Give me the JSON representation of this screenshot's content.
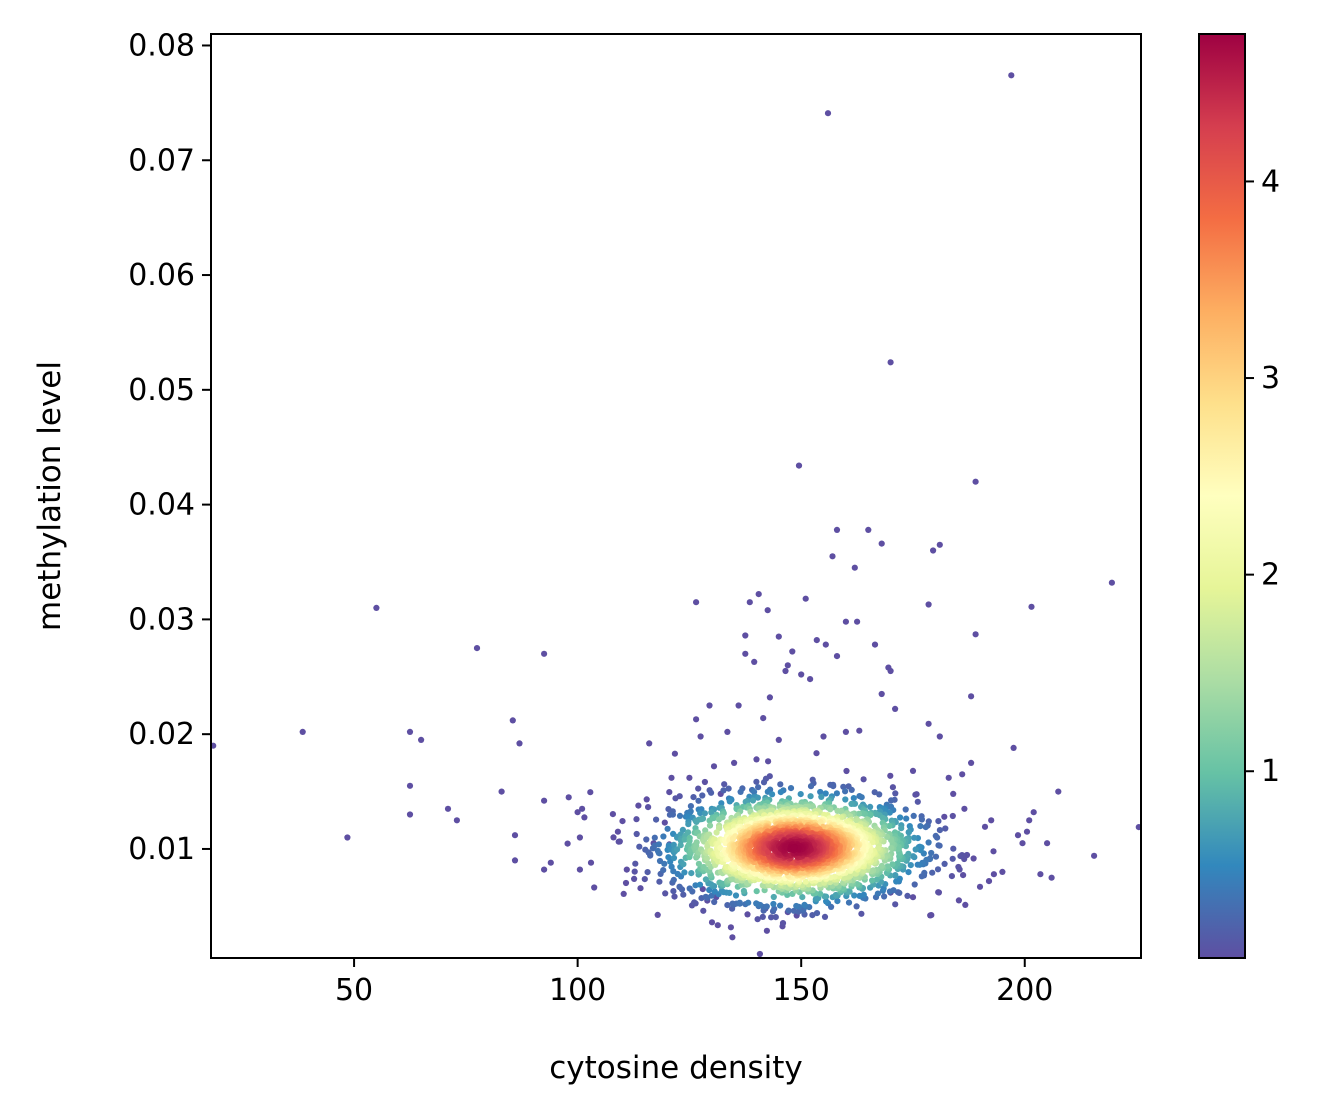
{
  "chart_data": {
    "type": "scatter",
    "title": "",
    "xlabel": "cytosine density",
    "ylabel": "methylation level",
    "xlim": [
      18,
      226
    ],
    "ylim": [
      0.0005,
      0.081
    ],
    "xticks": [
      50,
      100,
      150,
      200
    ],
    "xtick_labels": [
      "50",
      "100",
      "150",
      "200"
    ],
    "yticks": [
      0.01,
      0.02,
      0.03,
      0.04,
      0.05,
      0.06,
      0.07,
      0.08
    ],
    "ytick_labels": [
      "0.01",
      "0.02",
      "0.03",
      "0.04",
      "0.05",
      "0.06",
      "0.07",
      "0.08"
    ],
    "grid": false,
    "legend": "none",
    "colormap": "Spectral_r",
    "colorbar": {
      "range": [
        0.05,
        4.75
      ],
      "ticks": [
        1,
        2,
        3,
        4
      ],
      "tick_labels": [
        "1",
        "2",
        "3",
        "4"
      ],
      "colors": [
        "#5e4fa2",
        "#3288bd",
        "#66c2a5",
        "#abdda4",
        "#e6f598",
        "#ffffbf",
        "#fee08b",
        "#fdae61",
        "#f46d43",
        "#d53e4f",
        "#9e0142"
      ]
    },
    "outlier_points": [
      [
        18.5,
        0.019
      ],
      [
        38.5,
        0.0202
      ],
      [
        48.5,
        0.011
      ],
      [
        55,
        0.031
      ],
      [
        62.5,
        0.0202
      ],
      [
        62.5,
        0.0155
      ],
      [
        62.5,
        0.013
      ],
      [
        65,
        0.0195
      ],
      [
        71,
        0.0135
      ],
      [
        73,
        0.0125
      ],
      [
        77.5,
        0.0275
      ],
      [
        83,
        0.015
      ],
      [
        85.5,
        0.0212
      ],
      [
        86,
        0.0112
      ],
      [
        86,
        0.009
      ],
      [
        87,
        0.0192
      ],
      [
        92.5,
        0.0142
      ],
      [
        92.5,
        0.0082
      ],
      [
        92.5,
        0.027
      ],
      [
        94,
        0.0088
      ],
      [
        98,
        0.0145
      ],
      [
        100,
        0.0132
      ],
      [
        100.5,
        0.011
      ],
      [
        100.5,
        0.0082
      ],
      [
        101,
        0.0135
      ],
      [
        103,
        0.0088
      ],
      [
        109,
        0.0115
      ],
      [
        111,
        0.0082
      ],
      [
        116,
        0.0192
      ],
      [
        117,
        0.0105
      ],
      [
        119.5,
        0.0123
      ],
      [
        120.5,
        0.0104
      ],
      [
        121,
        0.0162
      ],
      [
        125,
        0.0162
      ],
      [
        126.5,
        0.0315
      ],
      [
        126.5,
        0.0213
      ],
      [
        127.5,
        0.0198
      ],
      [
        129.5,
        0.0225
      ],
      [
        130.5,
        0.0172
      ],
      [
        133.5,
        0.0202
      ],
      [
        136,
        0.0225
      ],
      [
        137.5,
        0.0286
      ],
      [
        137.5,
        0.027
      ],
      [
        138,
        0.0043
      ],
      [
        138.5,
        0.0315
      ],
      [
        139.5,
        0.0263
      ],
      [
        140.5,
        0.0322
      ],
      [
        141.5,
        0.0214
      ],
      [
        142,
        0.0048
      ],
      [
        142.5,
        0.0308
      ],
      [
        143,
        0.0232
      ],
      [
        145,
        0.0285
      ],
      [
        146.5,
        0.0255
      ],
      [
        147,
        0.026
      ],
      [
        147,
        0.0045
      ],
      [
        148,
        0.0272
      ],
      [
        149,
        0.0042
      ],
      [
        149.5,
        0.0434
      ],
      [
        150,
        0.0252
      ],
      [
        151,
        0.0318
      ],
      [
        152,
        0.0248
      ],
      [
        153.5,
        0.0282
      ],
      [
        155.5,
        0.0278
      ],
      [
        156,
        0.0741
      ],
      [
        157,
        0.0355
      ],
      [
        158,
        0.0378
      ],
      [
        158,
        0.0268
      ],
      [
        160,
        0.0298
      ],
      [
        162,
        0.0345
      ],
      [
        162.5,
        0.0298
      ],
      [
        165,
        0.0378
      ],
      [
        166.5,
        0.0278
      ],
      [
        168,
        0.0366
      ],
      [
        168,
        0.0235
      ],
      [
        169.5,
        0.0258
      ],
      [
        170,
        0.0524
      ],
      [
        170,
        0.0255
      ],
      [
        171,
        0.0222
      ],
      [
        175,
        0.0168
      ],
      [
        178.5,
        0.0313
      ],
      [
        178.5,
        0.0209
      ],
      [
        179.5,
        0.036
      ],
      [
        181,
        0.0365
      ],
      [
        181,
        0.0198
      ],
      [
        183,
        0.0162
      ],
      [
        186,
        0.0165
      ],
      [
        186.5,
        0.0135
      ],
      [
        188,
        0.0233
      ],
      [
        188,
        0.0175
      ],
      [
        189,
        0.0287
      ],
      [
        189,
        0.042
      ],
      [
        192.5,
        0.0125
      ],
      [
        193,
        0.0098
      ],
      [
        195,
        0.008
      ],
      [
        197,
        0.0774
      ],
      [
        197.5,
        0.0188
      ],
      [
        198.5,
        0.0112
      ],
      [
        199.5,
        0.0105
      ],
      [
        200.5,
        0.0115
      ],
      [
        201,
        0.0125
      ],
      [
        201.5,
        0.0311
      ],
      [
        202,
        0.0132
      ],
      [
        203.5,
        0.0078
      ],
      [
        205,
        0.0105
      ],
      [
        206,
        0.0075
      ],
      [
        207.5,
        0.015
      ],
      [
        215.5,
        0.0094
      ],
      [
        219.5,
        0.0332
      ],
      [
        225.5,
        0.0119
      ],
      [
        192,
        0.0072
      ],
      [
        190,
        0.0067
      ],
      [
        184,
        0.0148
      ],
      [
        182,
        0.0128
      ],
      [
        140,
        0.0178
      ],
      [
        135,
        0.0175
      ],
      [
        160,
        0.0202
      ],
      [
        163,
        0.0203
      ],
      [
        155,
        0.0198
      ],
      [
        145,
        0.0195
      ],
      [
        132,
        0.0148
      ],
      [
        128,
        0.0065
      ],
      [
        129,
        0.0055
      ],
      [
        131,
        0.0058
      ],
      [
        170,
        0.0062
      ],
      [
        175,
        0.0058
      ]
    ],
    "density_cluster": {
      "center": [
        148.5,
        0.0101
      ],
      "sd_x": 13.5,
      "sd_y": 0.0023,
      "n_points": 2400,
      "peak_density": 4.75
    }
  }
}
